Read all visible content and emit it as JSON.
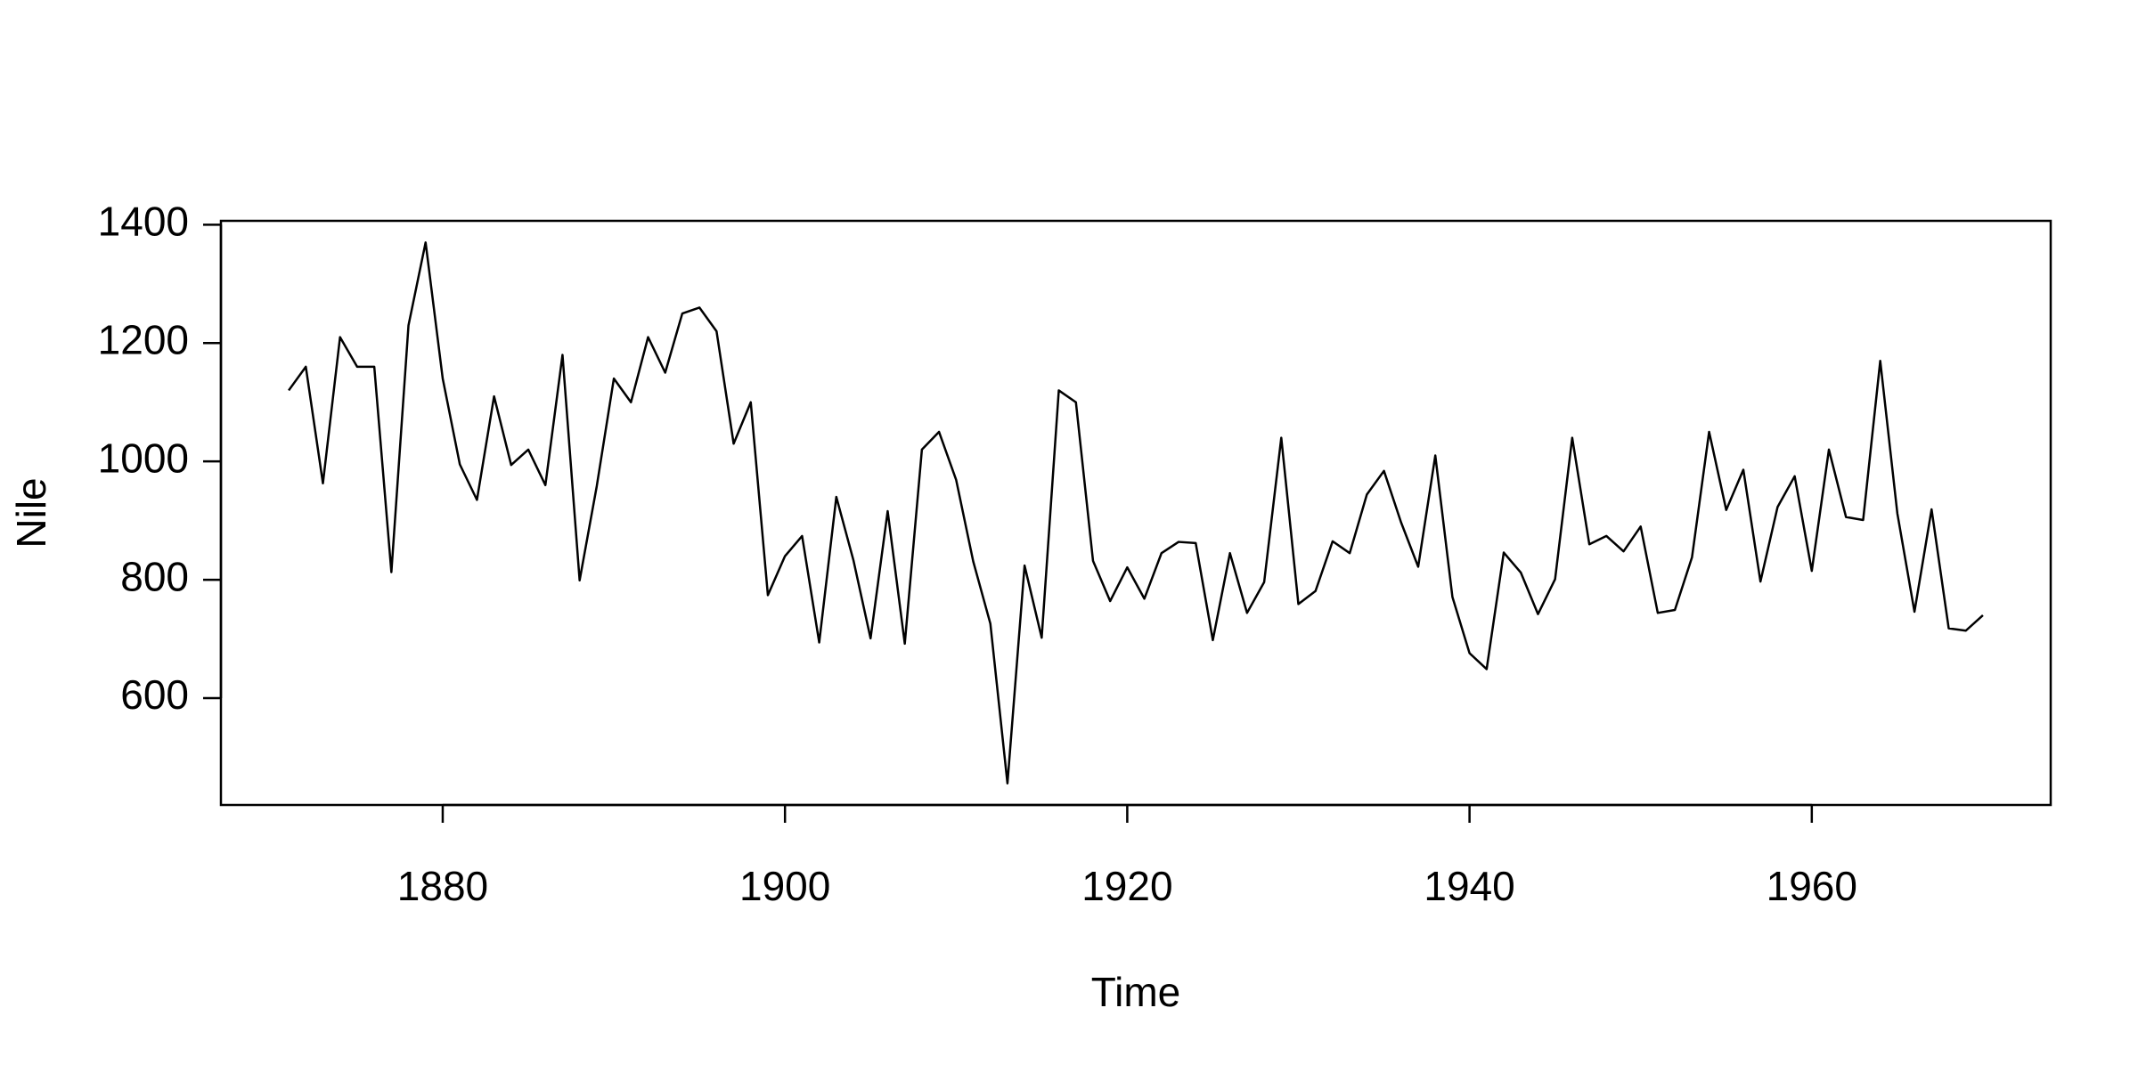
{
  "chart_data": {
    "type": "line",
    "xlabel": "Time",
    "ylabel": "Nile",
    "x": [
      1871,
      1872,
      1873,
      1874,
      1875,
      1876,
      1877,
      1878,
      1879,
      1880,
      1881,
      1882,
      1883,
      1884,
      1885,
      1886,
      1887,
      1888,
      1889,
      1890,
      1891,
      1892,
      1893,
      1894,
      1895,
      1896,
      1897,
      1898,
      1899,
      1900,
      1901,
      1902,
      1903,
      1904,
      1905,
      1906,
      1907,
      1908,
      1909,
      1910,
      1911,
      1912,
      1913,
      1914,
      1915,
      1916,
      1917,
      1918,
      1919,
      1920,
      1921,
      1922,
      1923,
      1924,
      1925,
      1926,
      1927,
      1928,
      1929,
      1930,
      1931,
      1932,
      1933,
      1934,
      1935,
      1936,
      1937,
      1938,
      1939,
      1940,
      1941,
      1942,
      1943,
      1944,
      1945,
      1946,
      1947,
      1948,
      1949,
      1950,
      1951,
      1952,
      1953,
      1954,
      1955,
      1956,
      1957,
      1958,
      1959,
      1960,
      1961,
      1962,
      1963,
      1964,
      1965,
      1966,
      1967,
      1968,
      1969,
      1970
    ],
    "series": [
      {
        "color": "#000000",
        "values": [
          1120,
          1160,
          963,
          1210,
          1160,
          1160,
          813,
          1230,
          1370,
          1140,
          995,
          935,
          1110,
          994,
          1020,
          960,
          1180,
          799,
          958,
          1140,
          1100,
          1210,
          1150,
          1250,
          1260,
          1220,
          1030,
          1100,
          774,
          840,
          874,
          694,
          940,
          833,
          701,
          916,
          692,
          1020,
          1050,
          969,
          831,
          726,
          456,
          824,
          702,
          1120,
          1100,
          832,
          764,
          821,
          768,
          845,
          864,
          862,
          698,
          845,
          744,
          796,
          1040,
          759,
          781,
          865,
          845,
          944,
          984,
          897,
          822,
          1010,
          771,
          676,
          649,
          846,
          812,
          742,
          801,
          1040,
          860,
          874,
          848,
          890,
          744,
          749,
          838,
          1050,
          918,
          986,
          797,
          923,
          975,
          815,
          1020,
          906,
          901,
          1170,
          912,
          746,
          919,
          718,
          714,
          740
        ]
      }
    ],
    "xlim": [
      1867.04,
      1973.96
    ],
    "xticks": [
      1880,
      1900,
      1920,
      1940,
      1960
    ],
    "ylim": [
      419.44,
      1406.56
    ],
    "yticks": [
      600,
      800,
      1000,
      1200,
      1400
    ]
  }
}
